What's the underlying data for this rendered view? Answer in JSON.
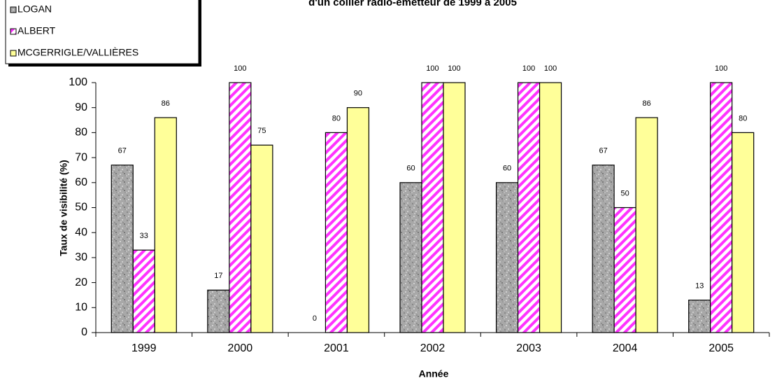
{
  "chart_data": {
    "type": "bar",
    "title": "d'un collier radio-émetteur de 1999 à 2005",
    "x_label": "Année",
    "y_label": "Taux de visibilité (%)",
    "categories": [
      "1999",
      "2000",
      "2001",
      "2002",
      "2003",
      "2004",
      "2005"
    ],
    "series": [
      {
        "name": "LOGAN",
        "color": "#a8a8a8",
        "pattern": "granite",
        "values": [
          67,
          17,
          0,
          60,
          60,
          67,
          13
        ]
      },
      {
        "name": "ALBERT",
        "color": "#ff33ff",
        "pattern": "stripes",
        "values": [
          33,
          100,
          80,
          100,
          100,
          50,
          100
        ]
      },
      {
        "name": "MCGERRIGLE/VALLIÈRES",
        "color": "#ffff99",
        "pattern": "solid",
        "values": [
          86,
          75,
          90,
          100,
          100,
          86,
          80
        ]
      }
    ],
    "ylim": [
      0,
      100
    ],
    "yticks": [
      0,
      10,
      20,
      30,
      40,
      50,
      60,
      70,
      80,
      90,
      100
    ],
    "grid": false,
    "legend": "top-left"
  }
}
